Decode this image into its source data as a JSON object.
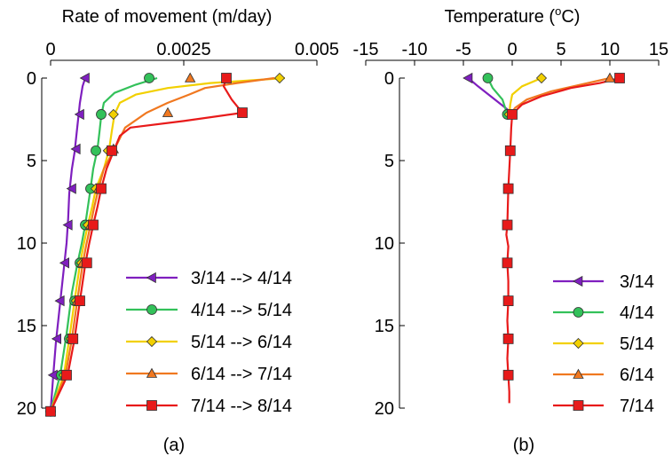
{
  "chart_data": [
    {
      "type": "line",
      "panel_label": "(a)",
      "title": "Rate of movement (m/day)",
      "xlabel": "Rate of movement (m/day)",
      "ylabel": "",
      "xlim": [
        0,
        0.005
      ],
      "ylim": [
        20,
        0
      ],
      "x_ticks": [
        "0",
        "0.0025",
        "0.005"
      ],
      "y_ticks": [
        "0",
        "5",
        "10",
        "15",
        "20"
      ],
      "x_axis_position": "top",
      "y_inverted": true,
      "grid": false,
      "legend_position": "bottom-right",
      "series": [
        {
          "name": "3/14 --> 4/14",
          "color": "#7f1fbf",
          "marker": "triangle-left",
          "line": [
            [
              0.00065,
              0
            ],
            [
              0.0006,
              0.5
            ],
            [
              0.00055,
              1.5
            ],
            [
              0.0005,
              3
            ],
            [
              0.00045,
              4.5
            ],
            [
              0.0004,
              5.5
            ],
            [
              0.00035,
              7
            ],
            [
              0.00033,
              8.5
            ],
            [
              0.0003,
              10
            ],
            [
              0.00025,
              11.5
            ],
            [
              0.0002,
              13
            ],
            [
              0.00015,
              14.5
            ],
            [
              0.0001,
              16
            ],
            [
              5e-05,
              18
            ],
            [
              0,
              20.2
            ]
          ],
          "markers": [
            [
              0.00065,
              0
            ],
            [
              0.00055,
              2.2
            ],
            [
              0.00048,
              4.3
            ],
            [
              0.0004,
              6.7
            ],
            [
              0.00033,
              8.9
            ],
            [
              0.00027,
              11.2
            ],
            [
              0.00018,
              13.5
            ],
            [
              0.00012,
              15.8
            ],
            [
              5e-05,
              18
            ],
            [
              0,
              20.2
            ]
          ]
        },
        {
          "name": "4/14 --> 5/14",
          "color": "#33c15a",
          "marker": "circle",
          "line": [
            [
              0.002,
              0
            ],
            [
              0.0016,
              0.4
            ],
            [
              0.0012,
              0.9
            ],
            [
              0.001,
              1.5
            ],
            [
              0.00095,
              2.3
            ],
            [
              0.00092,
              3.2
            ],
            [
              0.00088,
              4.3
            ],
            [
              0.0008,
              5.5
            ],
            [
              0.00075,
              6.7
            ],
            [
              0.0007,
              7.8
            ],
            [
              0.00065,
              8.9
            ],
            [
              0.00058,
              10.1
            ],
            [
              0.0005,
              11.3
            ],
            [
              0.0004,
              13
            ],
            [
              0.0003,
              15.5
            ],
            [
              0.00018,
              18
            ],
            [
              0,
              20.2
            ]
          ],
          "markers": [
            [
              0.00185,
              0
            ],
            [
              0.00095,
              2.2
            ],
            [
              0.00085,
              4.4
            ],
            [
              0.00075,
              6.7
            ],
            [
              0.00065,
              8.9
            ],
            [
              0.00055,
              11.2
            ],
            [
              0.00045,
              13.5
            ],
            [
              0.00035,
              15.8
            ],
            [
              0.0002,
              18
            ],
            [
              0,
              20.2
            ]
          ]
        },
        {
          "name": "5/14 --> 6/14",
          "color": "#f2d000",
          "marker": "diamond",
          "line": [
            [
              0.0044,
              0
            ],
            [
              0.003,
              0.3
            ],
            [
              0.0022,
              0.6
            ],
            [
              0.0016,
              1
            ],
            [
              0.0013,
              1.5
            ],
            [
              0.0012,
              2.2
            ],
            [
              0.00115,
              3.2
            ],
            [
              0.0011,
              4.3
            ],
            [
              0.001,
              5.5
            ],
            [
              0.00085,
              6.7
            ],
            [
              0.00078,
              7.8
            ],
            [
              0.0007,
              8.9
            ],
            [
              0.00062,
              10.1
            ],
            [
              0.00055,
              11.3
            ],
            [
              0.00045,
              13.5
            ],
            [
              0.00035,
              15.8
            ],
            [
              0.00025,
              18
            ],
            [
              0,
              20.2
            ]
          ],
          "markers": [
            [
              0.0043,
              0
            ],
            [
              0.00118,
              2.2
            ],
            [
              0.00108,
              4.4
            ],
            [
              0.00085,
              6.7
            ],
            [
              0.0007,
              8.9
            ],
            [
              0.00058,
              11.2
            ],
            [
              0.00048,
              13.5
            ],
            [
              0.00038,
              15.8
            ],
            [
              0.00025,
              18
            ],
            [
              0,
              20.2
            ]
          ]
        },
        {
          "name": "6/14 --> 7/14",
          "color": "#f07820",
          "marker": "triangle-up",
          "line": [
            [
              0.0042,
              0
            ],
            [
              0.0035,
              0.3
            ],
            [
              0.0029,
              0.6
            ],
            [
              0.0026,
              1
            ],
            [
              0.0022,
              1.5
            ],
            [
              0.0018,
              2.1
            ],
            [
              0.0014,
              3
            ],
            [
              0.0012,
              4.3
            ],
            [
              0.001,
              5.5
            ],
            [
              0.0009,
              6.7
            ],
            [
              0.00082,
              7.8
            ],
            [
              0.00075,
              8.9
            ],
            [
              0.00067,
              10.1
            ],
            [
              0.0006,
              11.3
            ],
            [
              0.0005,
              13.5
            ],
            [
              0.0004,
              15.8
            ],
            [
              0.00028,
              18
            ],
            [
              0,
              20.2
            ]
          ],
          "markers": [
            [
              0.00262,
              0
            ],
            [
              0.0022,
              2.1
            ],
            [
              0.00118,
              4.3
            ],
            [
              0.0009,
              6.7
            ],
            [
              0.00075,
              8.9
            ],
            [
              0.0006,
              11.2
            ],
            [
              0.0005,
              13.5
            ],
            [
              0.0004,
              15.8
            ],
            [
              0.00028,
              18
            ],
            [
              0,
              20.2
            ]
          ]
        },
        {
          "name": "7/14 --> 8/14",
          "color": "#e81a1a",
          "marker": "square",
          "line": [
            [
              0.0033,
              0
            ],
            [
              0.00325,
              0.5
            ],
            [
              0.0034,
              1.3
            ],
            [
              0.0036,
              2.1
            ],
            [
              0.0025,
              2.6
            ],
            [
              0.0015,
              3
            ],
            [
              0.0013,
              3.5
            ],
            [
              0.0012,
              4.3
            ],
            [
              0.00105,
              5.5
            ],
            [
              0.00095,
              6.7
            ],
            [
              0.00088,
              7.8
            ],
            [
              0.0008,
              8.9
            ],
            [
              0.00072,
              10.1
            ],
            [
              0.00065,
              11.3
            ],
            [
              0.00055,
              13.5
            ],
            [
              0.00045,
              15.8
            ],
            [
              0.00032,
              18
            ],
            [
              0,
              20.2
            ]
          ],
          "markers": [
            [
              0.0033,
              0
            ],
            [
              0.0036,
              2.1
            ],
            [
              0.00115,
              4.4
            ],
            [
              0.00095,
              6.7
            ],
            [
              0.0008,
              8.9
            ],
            [
              0.00068,
              11.2
            ],
            [
              0.00055,
              13.5
            ],
            [
              0.00042,
              15.8
            ],
            [
              0.0003,
              18
            ],
            [
              0,
              20.2
            ]
          ]
        }
      ]
    },
    {
      "type": "line",
      "panel_label": "(b)",
      "title_text": "Temperature (",
      "title_unit_sup": "o",
      "title_unit": "C)",
      "xlim": [
        -15,
        15
      ],
      "ylim": [
        20,
        0
      ],
      "x_ticks": [
        "-15",
        "-10",
        "-5",
        "0",
        "5",
        "10",
        "15"
      ],
      "y_ticks": [
        "0",
        "5",
        "10",
        "15",
        "20"
      ],
      "x_axis_position": "top",
      "y_inverted": true,
      "grid": false,
      "legend_position": "bottom-right",
      "series": [
        {
          "name": "3/14",
          "color": "#7f1fbf",
          "marker": "triangle-left",
          "line": [
            [
              -4.5,
              0
            ],
            [
              -3.5,
              0.5
            ],
            [
              -2,
              1.2
            ],
            [
              -0.5,
              1.9
            ],
            [
              -0.3,
              2.3
            ]
          ],
          "markers": [
            [
              -4.5,
              0
            ]
          ]
        },
        {
          "name": "4/14",
          "color": "#33c15a",
          "marker": "circle",
          "line": [
            [
              -2.5,
              0
            ],
            [
              -2,
              0.6
            ],
            [
              -1,
              1.3
            ],
            [
              -0.5,
              2.2
            ]
          ],
          "markers": [
            [
              -2.5,
              0
            ],
            [
              -0.5,
              2.2
            ]
          ]
        },
        {
          "name": "5/14",
          "color": "#f2d000",
          "marker": "diamond",
          "line": [
            [
              3,
              0
            ],
            [
              1,
              0.5
            ],
            [
              0,
              1
            ],
            [
              -0.2,
              1.6
            ],
            [
              -0.3,
              2.2
            ]
          ],
          "markers": [
            [
              3,
              0
            ],
            [
              -0.3,
              2.2
            ]
          ]
        },
        {
          "name": "6/14",
          "color": "#f07820",
          "marker": "triangle-up",
          "line": [
            [
              10,
              0
            ],
            [
              7,
              0.4
            ],
            [
              4,
              0.8
            ],
            [
              1.5,
              1.3
            ],
            [
              0.3,
              1.8
            ],
            [
              -0.2,
              2.2
            ]
          ],
          "markers": [
            [
              10,
              0
            ]
          ]
        },
        {
          "name": "7/14",
          "color": "#e81a1a",
          "marker": "square",
          "line": [
            [
              11,
              0
            ],
            [
              9,
              0.3
            ],
            [
              6,
              0.6
            ],
            [
              3,
              1.1
            ],
            [
              1,
              1.6
            ],
            [
              0,
              2.2
            ],
            [
              -0.1,
              3
            ],
            [
              -0.2,
              4.4
            ],
            [
              -0.4,
              6.7
            ],
            [
              -0.5,
              8.9
            ],
            [
              -0.6,
              9.5
            ],
            [
              -0.4,
              10.2
            ],
            [
              -0.5,
              11.2
            ],
            [
              -0.4,
              12.3
            ],
            [
              -0.4,
              13.5
            ],
            [
              -0.5,
              14.7
            ],
            [
              -0.4,
              15.8
            ],
            [
              -0.5,
              17
            ],
            [
              -0.4,
              18
            ],
            [
              -0.3,
              19
            ],
            [
              -0.3,
              19.7
            ]
          ],
          "markers": [
            [
              11,
              0
            ],
            [
              0,
              2.2
            ],
            [
              -0.2,
              4.4
            ],
            [
              -0.4,
              6.7
            ],
            [
              -0.5,
              8.9
            ],
            [
              -0.5,
              11.2
            ],
            [
              -0.4,
              13.5
            ],
            [
              -0.4,
              15.8
            ],
            [
              -0.4,
              18
            ]
          ]
        }
      ]
    }
  ]
}
